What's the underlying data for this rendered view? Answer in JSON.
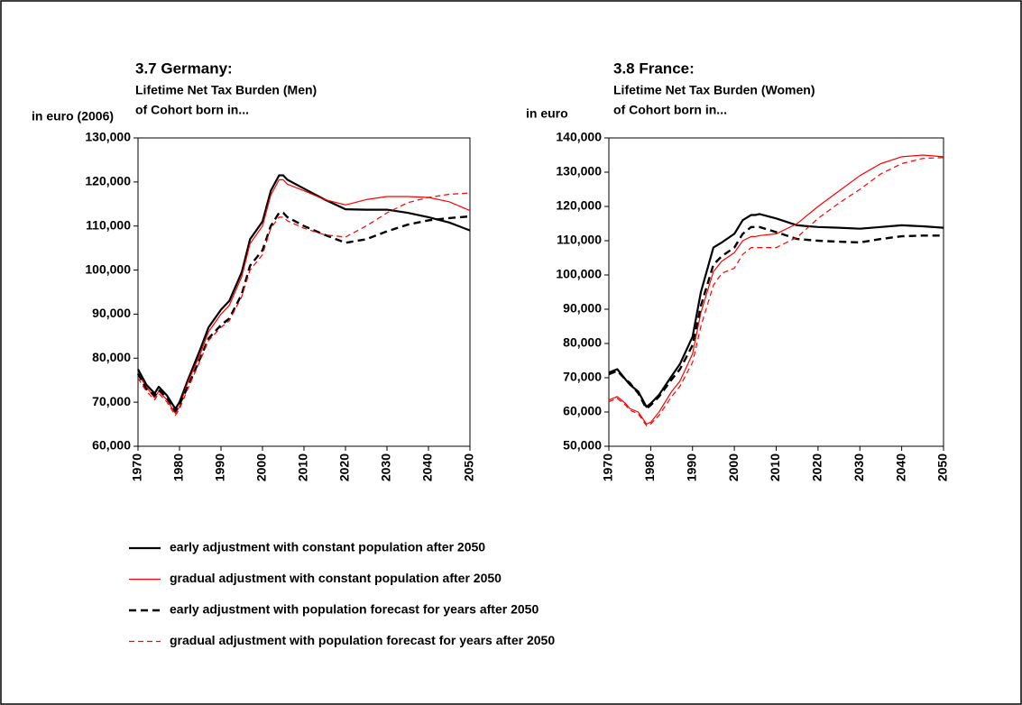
{
  "chart_data": [
    {
      "type": "line",
      "title": "3.7 Germany:",
      "subtitle": [
        "Lifetime Net Tax Burden (Men)",
        "of Cohort born in..."
      ],
      "ylabel": "in euro (2006)",
      "x": [
        1970,
        1972,
        1974,
        1975,
        1977,
        1979,
        1980,
        1982,
        1985,
        1987,
        1990,
        1992,
        1995,
        1997,
        2000,
        2002,
        2004,
        2005,
        2006,
        2010,
        2015,
        2020,
        2025,
        2030,
        2035,
        2040,
        2045,
        2050
      ],
      "xlim": [
        1970,
        2050
      ],
      "xticks": [
        1970,
        1980,
        1990,
        2000,
        2010,
        2020,
        2030,
        2040,
        2050
      ],
      "ylim": [
        60000,
        130000
      ],
      "yticks": [
        {
          "value": 60000,
          "label": "60,000"
        },
        {
          "value": 70000,
          "label": "70,000"
        },
        {
          "value": 80000,
          "label": "80,000"
        },
        {
          "value": 90000,
          "label": "90,000"
        },
        {
          "value": 100000,
          "label": "100,000"
        },
        {
          "value": 110000,
          "label": "110,000"
        },
        {
          "value": 120000,
          "label": "120,000"
        },
        {
          "value": 130000,
          "label": "130,000"
        }
      ],
      "series": [
        {
          "name": "early adjustment with constant population after 2050",
          "color": "#000000",
          "style": "solid",
          "width": 2.2,
          "values": [
            77500,
            74000,
            72000,
            73500,
            71500,
            68500,
            70000,
            75000,
            82000,
            87000,
            91000,
            93000,
            99500,
            107000,
            111000,
            118000,
            121500,
            121500,
            120500,
            118500,
            116000,
            113800,
            113700,
            113700,
            113000,
            112000,
            110800,
            109000
          ]
        },
        {
          "name": "gradual adjustment with constant population after 2050",
          "color": "#ff0000",
          "style": "solid",
          "width": 1.2,
          "values": [
            76500,
            73500,
            71000,
            72500,
            70500,
            67500,
            69000,
            74500,
            81000,
            86000,
            90000,
            92000,
            98500,
            106000,
            110000,
            117000,
            120500,
            120500,
            119500,
            118000,
            116000,
            114800,
            116000,
            116700,
            116700,
            116500,
            115500,
            113500
          ]
        },
        {
          "name": "early adjustment with population forecast for years after 2050",
          "color": "#000000",
          "style": "dashed",
          "width": 2.4,
          "values": [
            76500,
            73000,
            71500,
            72800,
            71000,
            68000,
            69500,
            73500,
            80000,
            84500,
            87500,
            89000,
            94500,
            101000,
            104500,
            110000,
            113000,
            113000,
            112000,
            110000,
            108000,
            106200,
            107000,
            108800,
            110300,
            111300,
            111800,
            112200
          ]
        },
        {
          "name": "gradual adjustment with population forecast for years after 2050",
          "color": "#ff0000",
          "style": "dashed",
          "width": 1.2,
          "values": [
            75500,
            72500,
            70500,
            72000,
            70000,
            67000,
            68500,
            73000,
            79500,
            84000,
            87000,
            88500,
            94000,
            100000,
            103500,
            109500,
            112000,
            112000,
            111200,
            109500,
            108000,
            107500,
            110000,
            113000,
            115300,
            116500,
            117200,
            117500
          ]
        }
      ]
    },
    {
      "type": "line",
      "title": "3.8 France:",
      "subtitle": [
        "Lifetime Net Tax Burden (Women)",
        "of Cohort born in..."
      ],
      "ylabel": "in euro",
      "x": [
        1970,
        1972,
        1974,
        1975,
        1977,
        1979,
        1980,
        1982,
        1985,
        1987,
        1990,
        1992,
        1995,
        1997,
        2000,
        2002,
        2004,
        2005,
        2006,
        2010,
        2015,
        2020,
        2025,
        2030,
        2035,
        2040,
        2045,
        2050
      ],
      "xlim": [
        1970,
        2050
      ],
      "xticks": [
        1970,
        1980,
        1990,
        2000,
        2010,
        2020,
        2030,
        2040,
        2050
      ],
      "ylim": [
        50000,
        140000
      ],
      "yticks": [
        {
          "value": 50000,
          "label": "50,000"
        },
        {
          "value": 60000,
          "label": "60,000"
        },
        {
          "value": 70000,
          "label": "70,000"
        },
        {
          "value": 80000,
          "label": "80,000"
        },
        {
          "value": 90000,
          "label": "90,000"
        },
        {
          "value": 100000,
          "label": "100,000"
        },
        {
          "value": 110000,
          "label": "110,000"
        },
        {
          "value": 120000,
          "label": "120,000"
        },
        {
          "value": 130000,
          "label": "130,000"
        },
        {
          "value": 140000,
          "label": "140,000"
        }
      ],
      "series": [
        {
          "color": "#000000",
          "style": "solid",
          "width": 2.2,
          "values": [
            71500,
            72500,
            69500,
            68000,
            66000,
            61500,
            62500,
            65000,
            70500,
            74000,
            82000,
            95000,
            108000,
            109500,
            112000,
            116000,
            117500,
            117500,
            117800,
            116500,
            114500,
            114000,
            113800,
            113500,
            114000,
            114500,
            114200,
            113800
          ]
        },
        {
          "color": "#ff0000",
          "style": "solid",
          "width": 1.2,
          "values": [
            63500,
            64500,
            62500,
            61000,
            60000,
            56500,
            57000,
            60000,
            66000,
            69000,
            77000,
            89000,
            101000,
            104000,
            106500,
            110000,
            111200,
            111200,
            111500,
            112000,
            115000,
            120000,
            124500,
            129000,
            132500,
            134500,
            135000,
            134500
          ]
        },
        {
          "color": "#000000",
          "style": "dashed",
          "width": 2.4,
          "values": [
            71000,
            72000,
            69500,
            68500,
            65500,
            61000,
            62000,
            64500,
            69500,
            72500,
            79500,
            91000,
            103000,
            105500,
            108000,
            112000,
            114000,
            114000,
            114000,
            112500,
            110500,
            110000,
            109700,
            109500,
            110500,
            111300,
            111500,
            111500
          ]
        },
        {
          "color": "#ff0000",
          "style": "dashed",
          "width": 1.2,
          "values": [
            63000,
            64000,
            62000,
            60500,
            59500,
            56000,
            56500,
            59000,
            64500,
            67500,
            74500,
            85000,
            97000,
            100500,
            102000,
            106000,
            108000,
            108000,
            108000,
            108000,
            111000,
            116500,
            121000,
            125000,
            129500,
            132500,
            134000,
            134300
          ]
        }
      ]
    }
  ]
}
